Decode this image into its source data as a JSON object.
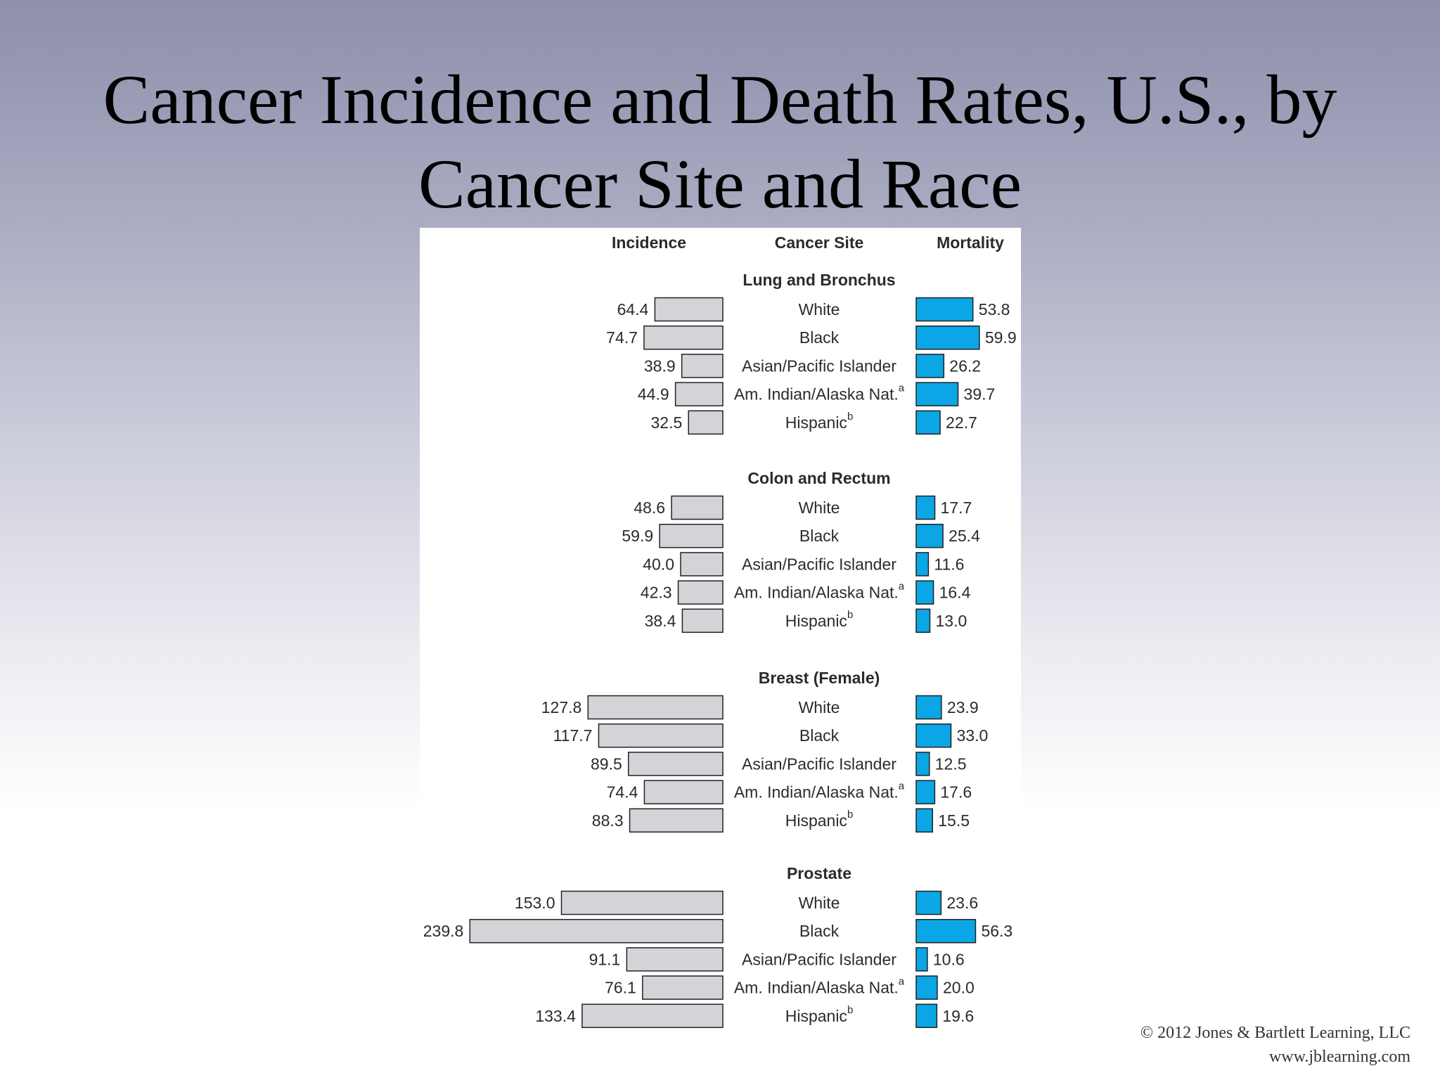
{
  "title_line1": "Cancer Incidence and Death Rates, U.S., by",
  "title_line2": "Cancer Site and Race",
  "copyright": "© 2012 Jones & Bartlett Learning, LLC",
  "website": "www.jblearning.com",
  "colors": {
    "incidence_bar": "#d4d3d8",
    "mortality_bar": "#0aa6e6",
    "bar_stroke": "#222222",
    "text": "#2b2b2b"
  },
  "chart_data": {
    "type": "bar",
    "column_headers": {
      "incidence": "Incidence",
      "site": "Cancer Site",
      "mortality": "Mortality"
    },
    "groups": [
      {
        "site": "Lung and Bronchus",
        "rows": [
          {
            "label": "White",
            "sup": "",
            "incidence": 64.4,
            "incidence_label": "64.4",
            "mortality": 53.8,
            "mortality_label": "53.8"
          },
          {
            "label": "Black",
            "sup": "",
            "incidence": 74.7,
            "incidence_label": "74.7",
            "mortality": 59.9,
            "mortality_label": "59.9"
          },
          {
            "label": "Asian/Pacific Islander",
            "sup": "",
            "incidence": 38.9,
            "incidence_label": "38.9",
            "mortality": 26.2,
            "mortality_label": "26.2"
          },
          {
            "label": "Am. Indian/Alaska Nat.",
            "sup": "a",
            "incidence": 44.9,
            "incidence_label": "44.9",
            "mortality": 39.7,
            "mortality_label": "39.7"
          },
          {
            "label": "Hispanic",
            "sup": "b",
            "incidence": 32.5,
            "incidence_label": "32.5",
            "mortality": 22.7,
            "mortality_label": "22.7"
          }
        ]
      },
      {
        "site": "Colon and Rectum",
        "rows": [
          {
            "label": "White",
            "sup": "",
            "incidence": 48.6,
            "incidence_label": "48.6",
            "mortality": 17.7,
            "mortality_label": "17.7"
          },
          {
            "label": "Black",
            "sup": "",
            "incidence": 59.9,
            "incidence_label": "59.9",
            "mortality": 25.4,
            "mortality_label": "25.4"
          },
          {
            "label": "Asian/Pacific Islander",
            "sup": "",
            "incidence": 40.0,
            "incidence_label": "40.0",
            "mortality": 11.6,
            "mortality_label": "11.6"
          },
          {
            "label": "Am. Indian/Alaska Nat.",
            "sup": "a",
            "incidence": 42.3,
            "incidence_label": "42.3",
            "mortality": 16.4,
            "mortality_label": "16.4"
          },
          {
            "label": "Hispanic",
            "sup": "b",
            "incidence": 38.4,
            "incidence_label": "38.4",
            "mortality": 13.0,
            "mortality_label": "13.0"
          }
        ]
      },
      {
        "site": "Breast (Female)",
        "rows": [
          {
            "label": "White",
            "sup": "",
            "incidence": 127.8,
            "incidence_label": "127.8",
            "mortality": 23.9,
            "mortality_label": "23.9"
          },
          {
            "label": "Black",
            "sup": "",
            "incidence": 117.7,
            "incidence_label": "117.7",
            "mortality": 33.0,
            "mortality_label": "33.0"
          },
          {
            "label": "Asian/Pacific Islander",
            "sup": "",
            "incidence": 89.5,
            "incidence_label": "89.5",
            "mortality": 12.5,
            "mortality_label": "12.5"
          },
          {
            "label": "Am. Indian/Alaska Nat.",
            "sup": "a",
            "incidence": 74.4,
            "incidence_label": "74.4",
            "mortality": 17.6,
            "mortality_label": "17.6"
          },
          {
            "label": "Hispanic",
            "sup": "b",
            "incidence": 88.3,
            "incidence_label": "88.3",
            "mortality": 15.5,
            "mortality_label": "15.5"
          }
        ]
      },
      {
        "site": "Prostate",
        "rows": [
          {
            "label": "White",
            "sup": "",
            "incidence": 153.0,
            "incidence_label": "153.0",
            "mortality": 23.6,
            "mortality_label": "23.6"
          },
          {
            "label": "Black",
            "sup": "",
            "incidence": 239.8,
            "incidence_label": "239.8",
            "mortality": 56.3,
            "mortality_label": "56.3"
          },
          {
            "label": "Asian/Pacific Islander",
            "sup": "",
            "incidence": 91.1,
            "incidence_label": "91.1",
            "mortality": 10.6,
            "mortality_label": "10.6"
          },
          {
            "label": "Am. Indian/Alaska Nat.",
            "sup": "a",
            "incidence": 76.1,
            "incidence_label": "76.1",
            "mortality": 20.0,
            "mortality_label": "20.0"
          },
          {
            "label": "Hispanic",
            "sup": "b",
            "incidence": 133.4,
            "incidence_label": "133.4",
            "mortality": 19.6,
            "mortality_label": "19.6"
          }
        ]
      }
    ]
  }
}
